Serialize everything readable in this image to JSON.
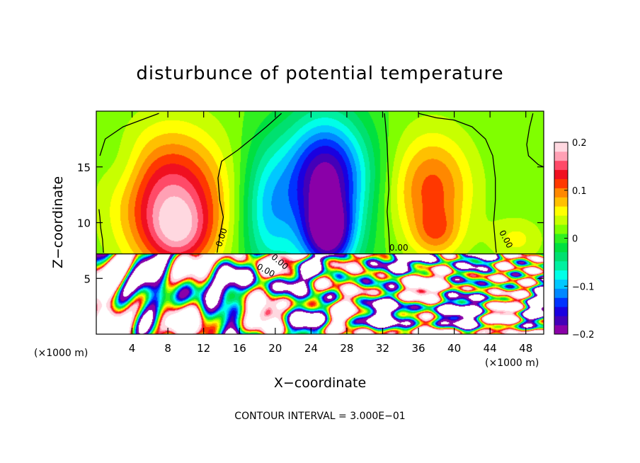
{
  "chart_data": {
    "type": "heatmap",
    "title": "disturbunce of potential temperature",
    "xlabel": "X−coordinate",
    "ylabel": "Z−coordinate",
    "x_unit_left": "(×1000 m)",
    "x_unit_right": "(×1000 m)",
    "xlim": [
      0,
      50
    ],
    "ylim": [
      0,
      20
    ],
    "x_ticks": [
      4,
      8,
      12,
      16,
      20,
      24,
      28,
      32,
      36,
      40,
      44,
      48
    ],
    "x_tick_labels": [
      "4",
      "8",
      "12",
      "16",
      "20",
      "24",
      "28",
      "32",
      "36",
      "40",
      "44",
      "48"
    ],
    "y_ticks": [
      5,
      10,
      15
    ],
    "y_tick_labels": [
      "5",
      "10",
      "15"
    ],
    "colorbar": {
      "range": [
        -0.2,
        0.2
      ],
      "ticks": [
        0.2,
        0.1,
        0,
        -0.1,
        -0.2
      ],
      "tick_labels": [
        "0.2",
        "0.1",
        "0",
        "−0.1",
        "−0.2"
      ],
      "colors": [
        "#8a00a8",
        "#4400b8",
        "#1a00e0",
        "#0033ff",
        "#0088ff",
        "#00c8ff",
        "#00ffe8",
        "#00f0a0",
        "#00e070",
        "#00e040",
        "#30f020",
        "#80ff00",
        "#c8ff00",
        "#ffff00",
        "#ffc000",
        "#ff8800",
        "#ff3800",
        "#f01020",
        "#ff4a68",
        "#ffa0b4",
        "#ffd8e0"
      ]
    },
    "blobs": [
      {
        "x": 8.5,
        "z": 12,
        "rx": 6,
        "rz": 6,
        "v": 0.15
      },
      {
        "x": 9.2,
        "z": 9,
        "rx": 3.5,
        "rz": 3,
        "v": 0.07
      },
      {
        "x": 19,
        "z": 11,
        "rx": 3,
        "rz": 6,
        "v": -0.09
      },
      {
        "x": 25.5,
        "z": 12.5,
        "rx": 4.5,
        "rz": 7,
        "v": -0.17
      },
      {
        "x": 26,
        "z": 9,
        "rx": 2.5,
        "rz": 2.8,
        "v": -0.12
      },
      {
        "x": 26,
        "z": 15,
        "rx": 5.5,
        "rz": 4,
        "v": -0.05
      },
      {
        "x": 37.5,
        "z": 13,
        "rx": 4.5,
        "rz": 5,
        "v": 0.1
      },
      {
        "x": 38,
        "z": 9,
        "rx": 2.5,
        "rz": 2,
        "v": 0.05
      },
      {
        "x": 47,
        "z": 8.5,
        "rx": 3,
        "rz": 2,
        "v": 0.04
      },
      {
        "x": 3,
        "z": 15,
        "rx": 2.5,
        "rz": 3,
        "v": -0.02
      }
    ],
    "contour_lines": [
      {
        "label": "0.00",
        "points": [
          [
            0.4,
            16
          ],
          [
            1,
            17.5
          ],
          [
            3,
            18.6
          ],
          [
            5,
            19.2
          ],
          [
            7,
            19.8
          ]
        ]
      },
      {
        "label": "0.00",
        "points": [
          [
            0.8,
            7.3
          ],
          [
            0.7,
            8.5
          ],
          [
            0.5,
            9.5
          ],
          [
            0.4,
            10.5
          ],
          [
            0.3,
            11.2
          ]
        ]
      },
      {
        "label": "0.00",
        "points": [
          [
            13.5,
            7.3
          ],
          [
            13.8,
            8.8
          ],
          [
            14.2,
            10.5
          ],
          [
            13.8,
            12
          ],
          [
            13.6,
            14
          ],
          [
            14,
            15.5
          ],
          [
            15.8,
            16.5
          ],
          [
            17.5,
            17.6
          ],
          [
            19,
            18.6
          ],
          [
            20.7,
            19.8
          ]
        ]
      },
      {
        "label": "0.00",
        "points": [
          [
            32.8,
            7.3
          ],
          [
            32.7,
            9
          ],
          [
            32.5,
            11
          ],
          [
            32.7,
            13
          ],
          [
            32.6,
            15
          ],
          [
            32.5,
            17
          ],
          [
            32.3,
            19
          ],
          [
            32.2,
            19.8
          ]
        ]
      },
      {
        "label": "",
        "points": [
          [
            36,
            19.8
          ],
          [
            38,
            19.4
          ],
          [
            40,
            19.2
          ],
          [
            42,
            18.6
          ],
          [
            43.5,
            17.5
          ],
          [
            44.3,
            16
          ],
          [
            44.6,
            14
          ],
          [
            44.6,
            12
          ],
          [
            44.4,
            10
          ],
          [
            44.6,
            8.2
          ],
          [
            44.7,
            7.3
          ]
        ]
      },
      {
        "label": "",
        "points": [
          [
            48.8,
            19.8
          ],
          [
            48.4,
            18.5
          ],
          [
            48.1,
            17
          ],
          [
            48.3,
            16
          ],
          [
            49.4,
            15.2
          ],
          [
            50,
            15
          ]
        ]
      }
    ],
    "annotations": [
      "0.00",
      "0.00",
      "0.00",
      "0.00",
      "0.00"
    ],
    "footer": "CONTOUR INTERVAL = 3.000E−01"
  }
}
